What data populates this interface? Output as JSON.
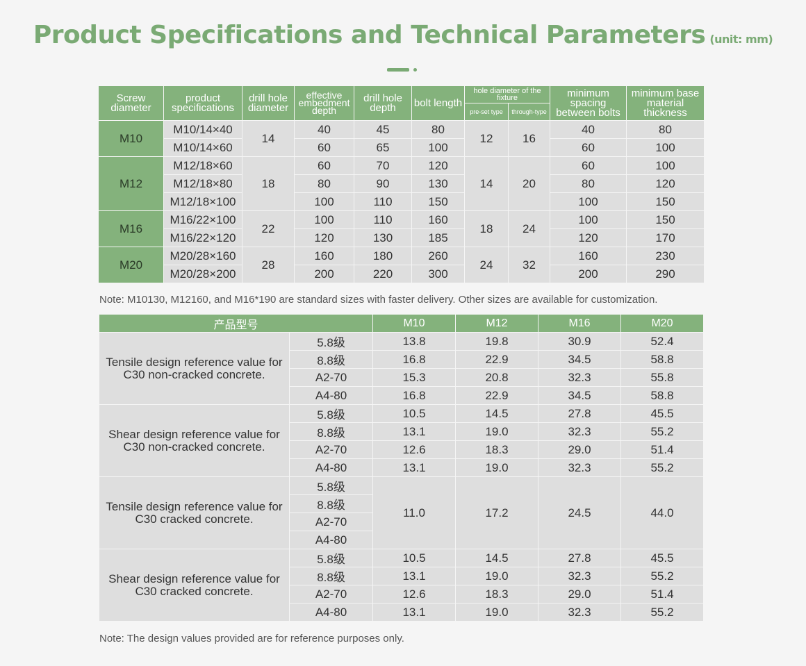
{
  "title": "Product Specifications and Technical Parameters",
  "unit": "(unit: mm)",
  "table1": {
    "headers": {
      "screw_diameter": "Screw diameter",
      "product_specifications": "product specifications",
      "drill_hole_diameter": "drill hole diameter",
      "effective_embedment_depth": "effective embedment depth",
      "drill_hole_depth": "drill hole depth",
      "bolt_length": "bolt length",
      "hole_diameter_fixture": "hole diameter of the fixture",
      "pre_set_type": "pre-set type",
      "through_type": "through-type",
      "minimum_spacing": "minimum spacing between bolts",
      "minimum_base": "minimum base material thickness"
    },
    "groups": [
      {
        "diameter": "M10",
        "drill_hole": "14",
        "preset": "12",
        "through": "16",
        "rows": [
          {
            "spec": "M10/14×40",
            "embed": "40",
            "depth": "45",
            "length": "80",
            "spacing": "40",
            "base": "80"
          },
          {
            "spec": "M10/14×60",
            "embed": "60",
            "depth": "65",
            "length": "100",
            "spacing": "60",
            "base": "100"
          }
        ]
      },
      {
        "diameter": "M12",
        "drill_hole": "18",
        "preset": "14",
        "through": "20",
        "rows": [
          {
            "spec": "M12/18×60",
            "embed": "60",
            "depth": "70",
            "length": "120",
            "spacing": "60",
            "base": "100"
          },
          {
            "spec": "M12/18×80",
            "embed": "80",
            "depth": "90",
            "length": "130",
            "spacing": "80",
            "base": "120"
          },
          {
            "spec": "M12/18×100",
            "embed": "100",
            "depth": "110",
            "length": "150",
            "spacing": "100",
            "base": "150"
          }
        ]
      },
      {
        "diameter": "M16",
        "drill_hole": "22",
        "preset": "18",
        "through": "24",
        "rows": [
          {
            "spec": "M16/22×100",
            "embed": "100",
            "depth": "110",
            "length": "160",
            "spacing": "100",
            "base": "150"
          },
          {
            "spec": "M16/22×120",
            "embed": "120",
            "depth": "130",
            "length": "185",
            "spacing": "120",
            "base": "170"
          }
        ]
      },
      {
        "diameter": "M20",
        "drill_hole": "28",
        "preset": "24",
        "through": "32",
        "rows": [
          {
            "spec": "M20/28×160",
            "embed": "160",
            "depth": "180",
            "length": "260",
            "spacing": "160",
            "base": "230"
          },
          {
            "spec": "M20/28×200",
            "embed": "200",
            "depth": "220",
            "length": "300",
            "spacing": "200",
            "base": "290"
          }
        ]
      }
    ]
  },
  "note1": "Note: M10130, M12160, and M16*190 are standard sizes with faster delivery. Other sizes are available for customization.",
  "table2": {
    "header_model": "产品型号",
    "columns": [
      "M10",
      "M12",
      "M16",
      "M20"
    ],
    "sections": [
      {
        "label": "Tensile design reference value for C30 non-cracked concrete.",
        "merged": false,
        "rows": [
          {
            "grade": "5.8级",
            "values": [
              "13.8",
              "19.8",
              "30.9",
              "52.4"
            ]
          },
          {
            "grade": "8.8级",
            "values": [
              "16.8",
              "22.9",
              "34.5",
              "58.8"
            ]
          },
          {
            "grade": "A2-70",
            "values": [
              "15.3",
              "20.8",
              "32.3",
              "55.8"
            ]
          },
          {
            "grade": "A4-80",
            "values": [
              "16.8",
              "22.9",
              "34.5",
              "58.8"
            ]
          }
        ]
      },
      {
        "label": "Shear design reference value for C30 non-cracked concrete.",
        "merged": false,
        "rows": [
          {
            "grade": "5.8级",
            "values": [
              "10.5",
              "14.5",
              "27.8",
              "45.5"
            ]
          },
          {
            "grade": "8.8级",
            "values": [
              "13.1",
              "19.0",
              "32.3",
              "55.2"
            ]
          },
          {
            "grade": "A2-70",
            "values": [
              "12.6",
              "18.3",
              "29.0",
              "51.4"
            ]
          },
          {
            "grade": "A4-80",
            "values": [
              "13.1",
              "19.0",
              "32.3",
              "55.2"
            ]
          }
        ]
      },
      {
        "label": "Tensile design reference value for C30 cracked concrete.",
        "merged": true,
        "merged_values": [
          "11.0",
          "17.2",
          "24.5",
          "44.0"
        ],
        "rows": [
          {
            "grade": "5.8级"
          },
          {
            "grade": "8.8级"
          },
          {
            "grade": "A2-70"
          },
          {
            "grade": "A4-80"
          }
        ]
      },
      {
        "label": "Shear design reference value for C30 cracked concrete.",
        "merged": false,
        "rows": [
          {
            "grade": "5.8级",
            "values": [
              "10.5",
              "14.5",
              "27.8",
              "45.5"
            ]
          },
          {
            "grade": "8.8级",
            "values": [
              "13.1",
              "19.0",
              "32.3",
              "55.2"
            ]
          },
          {
            "grade": "A2-70",
            "values": [
              "12.6",
              "18.3",
              "29.0",
              "51.4"
            ]
          },
          {
            "grade": "A4-80",
            "values": [
              "13.1",
              "19.0",
              "32.3",
              "55.2"
            ]
          }
        ]
      }
    ]
  },
  "note2": "Note: The design values provided are for reference purposes only.",
  "colors": {
    "accent": "#84b27c",
    "title": "#7aaa74",
    "cell": "#dedede"
  }
}
